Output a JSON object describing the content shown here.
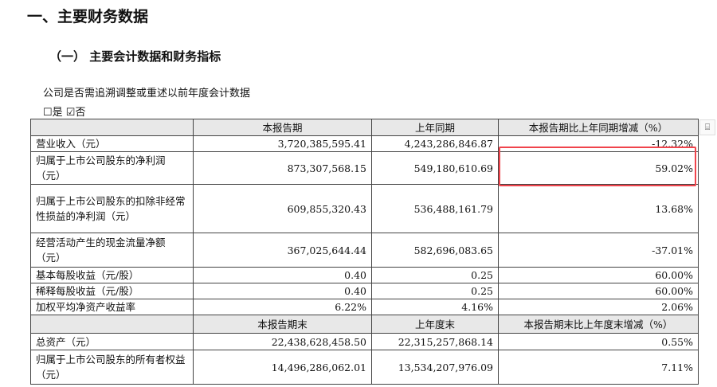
{
  "title": "一、主要财务数据",
  "subtitle": "（一）  主要会计数据和财务指标",
  "question": "公司是否需追溯调整或重述以前年度会计数据",
  "checkbox": {
    "yes": "☐是",
    "no": "☑否"
  },
  "table1": {
    "headers": [
      "",
      "本报告期",
      "上年同期",
      "本报告期比上年同期增减（%）"
    ],
    "rows": [
      [
        "营业收入（元）",
        "3,720,385,595.41",
        "4,243,286,846.87",
        "-12.32%"
      ],
      [
        "归属于上市公司股东的净利润（元）",
        "873,307,568.15",
        "549,180,610.69",
        "59.02%"
      ],
      [
        "归属于上市公司股东的扣除非经常性损益的净利润（元）",
        "609,855,320.43",
        "536,488,161.79",
        "13.68%"
      ],
      [
        "经营活动产生的现金流量净额（元）",
        "367,025,644.44",
        "582,696,083.65",
        "-37.01%"
      ],
      [
        "基本每股收益（元/股）",
        "0.40",
        "0.25",
        "60.00%"
      ],
      [
        "稀释每股收益（元/股）",
        "0.40",
        "0.25",
        "60.00%"
      ],
      [
        "加权平均净资产收益率",
        "6.22%",
        "4.16%",
        "2.06%"
      ]
    ]
  },
  "table2": {
    "headers": [
      "",
      "本报告期末",
      "上年度末",
      "本报告期末比上年度末增减（%）"
    ],
    "rows": [
      [
        "总资产（元）",
        "22,438,628,458.50",
        "22,315,257,868.14",
        "0.55%"
      ],
      [
        "归属于上市公司股东的所有者权益（元）",
        "14,496,286,062.01",
        "13,534,207,976.09",
        "7.11%"
      ]
    ]
  },
  "highlight_color": "#f0444c",
  "side_icon": "scan-icon"
}
